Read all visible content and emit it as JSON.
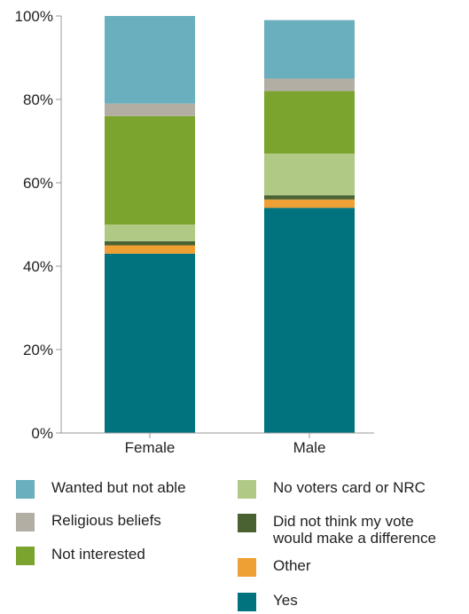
{
  "chart_data": {
    "type": "bar",
    "stacked": true,
    "categories": [
      "Female",
      "Male"
    ],
    "series": [
      {
        "name": "Yes",
        "color": "#00737f",
        "values": [
          43,
          54
        ]
      },
      {
        "name": "Other",
        "color": "#eea035",
        "values": [
          2,
          2
        ]
      },
      {
        "name": "Did not think my vote would make a difference",
        "color": "#4a6232",
        "values": [
          1,
          1
        ]
      },
      {
        "name": "No voters card or NRC",
        "color": "#b0ca85",
        "values": [
          4,
          10
        ]
      },
      {
        "name": "Not interested",
        "color": "#7aa42e",
        "values": [
          26,
          15
        ]
      },
      {
        "name": "Religious beliefs",
        "color": "#b2aea3",
        "values": [
          3,
          3
        ]
      },
      {
        "name": "Wanted but not able",
        "color": "#6aafbd",
        "values": [
          21,
          14
        ]
      }
    ],
    "yticks": [
      "0%",
      "20%",
      "40%",
      "60%",
      "80%",
      "100%"
    ],
    "ylim": [
      0,
      100
    ],
    "grid": false,
    "legend_position": "bottom"
  },
  "legend": {
    "items": [
      {
        "label": "Wanted but not able",
        "color": "#6aafbd",
        "icon": "legend-swatch"
      },
      {
        "label": "Religious beliefs",
        "color": "#b2aea3",
        "icon": "legend-swatch"
      },
      {
        "label": "Not interested",
        "color": "#7aa42e",
        "icon": "legend-swatch"
      },
      {
        "label": "No voters card or NRC",
        "color": "#b0ca85",
        "icon": "legend-swatch"
      },
      {
        "label": "Did not think my vote\nwould make a difference",
        "color": "#4a6232",
        "icon": "legend-swatch"
      },
      {
        "label": "Other",
        "color": "#eea035",
        "icon": "legend-swatch"
      },
      {
        "label": "Yes",
        "color": "#00737f",
        "icon": "legend-swatch"
      }
    ]
  }
}
